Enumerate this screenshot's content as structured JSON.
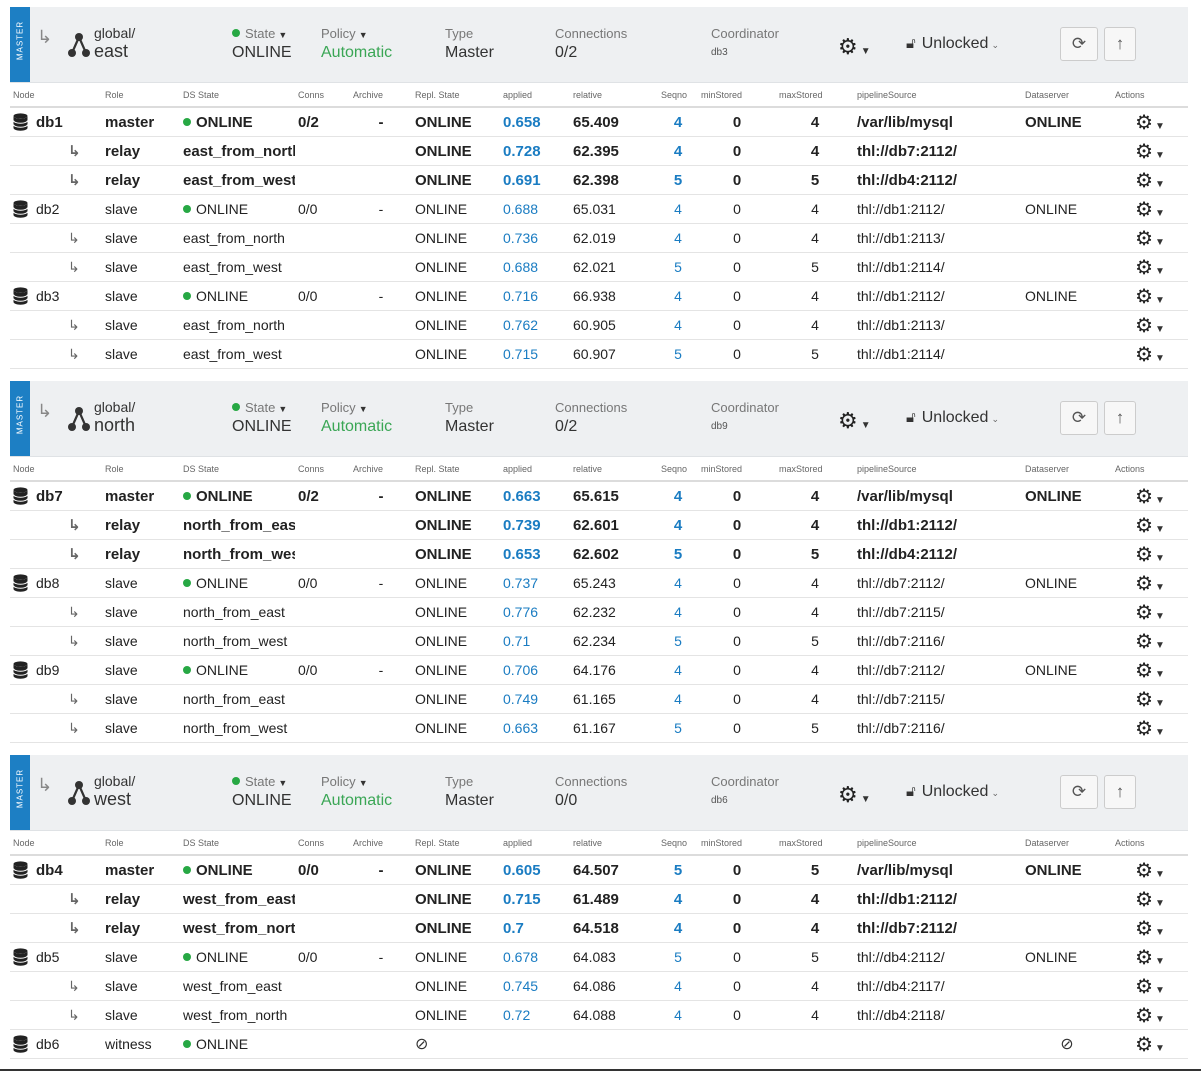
{
  "columns": [
    "Node",
    "Role",
    "DS State",
    "Conns",
    "Archive",
    "Repl. State",
    "applied",
    "relative",
    "Seqno",
    "minStored",
    "maxStored",
    "pipelineSource",
    "Dataserver",
    "Actions"
  ],
  "header_labels": {
    "state": "State",
    "policy": "Policy",
    "type": "Type",
    "connections": "Connections",
    "coordinator": "Coordinator",
    "lock": "Unlocked",
    "ribbon": "MASTER"
  },
  "colors": {
    "accent": "#1d7fc4",
    "online_dot": "#27a844",
    "policy": "#3aa655",
    "link": "#1a7cc2"
  },
  "services": [
    {
      "prefix": "global/",
      "name": "east",
      "state": "ONLINE",
      "policy": "Automatic",
      "type": "Master",
      "connections": "0/2",
      "coordinator": "db3",
      "rows": [
        {
          "kind": "node",
          "bold": true,
          "node": "db1",
          "role": "master",
          "ds": "ONLINE",
          "conns": "0/2",
          "archive": "-",
          "repl": "ONLINE",
          "applied": "0.658",
          "relative": "65.409",
          "seqno": "4",
          "min": "0",
          "max": "4",
          "source": "/var/lib/mysql",
          "dataserver": "ONLINE"
        },
        {
          "kind": "sub",
          "bold": true,
          "role": "relay",
          "ds": "east_from_north",
          "repl": "ONLINE",
          "applied": "0.728",
          "relative": "62.395",
          "seqno": "4",
          "min": "0",
          "max": "4",
          "source": "thl://db7:2112/"
        },
        {
          "kind": "sub",
          "bold": true,
          "role": "relay",
          "ds": "east_from_west",
          "repl": "ONLINE",
          "applied": "0.691",
          "relative": "62.398",
          "seqno": "5",
          "min": "0",
          "max": "5",
          "source": "thl://db4:2112/"
        },
        {
          "kind": "node",
          "bold": false,
          "node": "db2",
          "role": "slave",
          "ds": "ONLINE",
          "conns": "0/0",
          "archive": "-",
          "repl": "ONLINE",
          "applied": "0.688",
          "relative": "65.031",
          "seqno": "4",
          "min": "0",
          "max": "4",
          "source": "thl://db1:2112/",
          "dataserver": "ONLINE"
        },
        {
          "kind": "sub",
          "bold": false,
          "role": "slave",
          "ds": "east_from_north",
          "repl": "ONLINE",
          "applied": "0.736",
          "relative": "62.019",
          "seqno": "4",
          "min": "0",
          "max": "4",
          "source": "thl://db1:2113/"
        },
        {
          "kind": "sub",
          "bold": false,
          "role": "slave",
          "ds": "east_from_west",
          "repl": "ONLINE",
          "applied": "0.688",
          "relative": "62.021",
          "seqno": "5",
          "min": "0",
          "max": "5",
          "source": "thl://db1:2114/"
        },
        {
          "kind": "node",
          "bold": false,
          "node": "db3",
          "role": "slave",
          "ds": "ONLINE",
          "conns": "0/0",
          "archive": "-",
          "repl": "ONLINE",
          "applied": "0.716",
          "relative": "66.938",
          "seqno": "4",
          "min": "0",
          "max": "4",
          "source": "thl://db1:2112/",
          "dataserver": "ONLINE"
        },
        {
          "kind": "sub",
          "bold": false,
          "role": "slave",
          "ds": "east_from_north",
          "repl": "ONLINE",
          "applied": "0.762",
          "relative": "60.905",
          "seqno": "4",
          "min": "0",
          "max": "4",
          "source": "thl://db1:2113/"
        },
        {
          "kind": "sub",
          "bold": false,
          "role": "slave",
          "ds": "east_from_west",
          "repl": "ONLINE",
          "applied": "0.715",
          "relative": "60.907",
          "seqno": "5",
          "min": "0",
          "max": "5",
          "source": "thl://db1:2114/"
        }
      ]
    },
    {
      "prefix": "global/",
      "name": "north",
      "state": "ONLINE",
      "policy": "Automatic",
      "type": "Master",
      "connections": "0/2",
      "coordinator": "db9",
      "rows": [
        {
          "kind": "node",
          "bold": true,
          "node": "db7",
          "role": "master",
          "ds": "ONLINE",
          "conns": "0/2",
          "archive": "-",
          "repl": "ONLINE",
          "applied": "0.663",
          "relative": "65.615",
          "seqno": "4",
          "min": "0",
          "max": "4",
          "source": "/var/lib/mysql",
          "dataserver": "ONLINE"
        },
        {
          "kind": "sub",
          "bold": true,
          "role": "relay",
          "ds": "north_from_east",
          "repl": "ONLINE",
          "applied": "0.739",
          "relative": "62.601",
          "seqno": "4",
          "min": "0",
          "max": "4",
          "source": "thl://db1:2112/"
        },
        {
          "kind": "sub",
          "bold": true,
          "role": "relay",
          "ds": "north_from_west",
          "repl": "ONLINE",
          "applied": "0.653",
          "relative": "62.602",
          "seqno": "5",
          "min": "0",
          "max": "5",
          "source": "thl://db4:2112/"
        },
        {
          "kind": "node",
          "bold": false,
          "node": "db8",
          "role": "slave",
          "ds": "ONLINE",
          "conns": "0/0",
          "archive": "-",
          "repl": "ONLINE",
          "applied": "0.737",
          "relative": "65.243",
          "seqno": "4",
          "min": "0",
          "max": "4",
          "source": "thl://db7:2112/",
          "dataserver": "ONLINE"
        },
        {
          "kind": "sub",
          "bold": false,
          "role": "slave",
          "ds": "north_from_east",
          "repl": "ONLINE",
          "applied": "0.776",
          "relative": "62.232",
          "seqno": "4",
          "min": "0",
          "max": "4",
          "source": "thl://db7:2115/"
        },
        {
          "kind": "sub",
          "bold": false,
          "role": "slave",
          "ds": "north_from_west",
          "repl": "ONLINE",
          "applied": "0.71",
          "relative": "62.234",
          "seqno": "5",
          "min": "0",
          "max": "5",
          "source": "thl://db7:2116/"
        },
        {
          "kind": "node",
          "bold": false,
          "node": "db9",
          "role": "slave",
          "ds": "ONLINE",
          "conns": "0/0",
          "archive": "-",
          "repl": "ONLINE",
          "applied": "0.706",
          "relative": "64.176",
          "seqno": "4",
          "min": "0",
          "max": "4",
          "source": "thl://db7:2112/",
          "dataserver": "ONLINE"
        },
        {
          "kind": "sub",
          "bold": false,
          "role": "slave",
          "ds": "north_from_east",
          "repl": "ONLINE",
          "applied": "0.749",
          "relative": "61.165",
          "seqno": "4",
          "min": "0",
          "max": "4",
          "source": "thl://db7:2115/"
        },
        {
          "kind": "sub",
          "bold": false,
          "role": "slave",
          "ds": "north_from_west",
          "repl": "ONLINE",
          "applied": "0.663",
          "relative": "61.167",
          "seqno": "5",
          "min": "0",
          "max": "5",
          "source": "thl://db7:2116/"
        }
      ]
    },
    {
      "prefix": "global/",
      "name": "west",
      "state": "ONLINE",
      "policy": "Automatic",
      "type": "Master",
      "connections": "0/0",
      "coordinator": "db6",
      "rows": [
        {
          "kind": "node",
          "bold": true,
          "node": "db4",
          "role": "master",
          "ds": "ONLINE",
          "conns": "0/0",
          "archive": "-",
          "repl": "ONLINE",
          "applied": "0.605",
          "relative": "64.507",
          "seqno": "5",
          "min": "0",
          "max": "5",
          "source": "/var/lib/mysql",
          "dataserver": "ONLINE"
        },
        {
          "kind": "sub",
          "bold": true,
          "role": "relay",
          "ds": "west_from_east",
          "repl": "ONLINE",
          "applied": "0.715",
          "relative": "61.489",
          "seqno": "4",
          "min": "0",
          "max": "4",
          "source": "thl://db1:2112/"
        },
        {
          "kind": "sub",
          "bold": true,
          "role": "relay",
          "ds": "west_from_north",
          "repl": "ONLINE",
          "applied": "0.7",
          "relative": "64.518",
          "seqno": "4",
          "min": "0",
          "max": "4",
          "source": "thl://db7:2112/"
        },
        {
          "kind": "node",
          "bold": false,
          "node": "db5",
          "role": "slave",
          "ds": "ONLINE",
          "conns": "0/0",
          "archive": "-",
          "repl": "ONLINE",
          "applied": "0.678",
          "relative": "64.083",
          "seqno": "5",
          "min": "0",
          "max": "5",
          "source": "thl://db4:2112/",
          "dataserver": "ONLINE"
        },
        {
          "kind": "sub",
          "bold": false,
          "role": "slave",
          "ds": "west_from_east",
          "repl": "ONLINE",
          "applied": "0.745",
          "relative": "64.086",
          "seqno": "4",
          "min": "0",
          "max": "4",
          "source": "thl://db4:2117/"
        },
        {
          "kind": "sub",
          "bold": false,
          "role": "slave",
          "ds": "west_from_north",
          "repl": "ONLINE",
          "applied": "0.72",
          "relative": "64.088",
          "seqno": "4",
          "min": "0",
          "max": "4",
          "source": "thl://db4:2118/"
        },
        {
          "kind": "witness",
          "bold": false,
          "node": "db6",
          "role": "witness",
          "ds": "ONLINE",
          "repl_icon": "no-entry-icon",
          "dataserver_icon": "no-entry-icon"
        }
      ]
    }
  ]
}
